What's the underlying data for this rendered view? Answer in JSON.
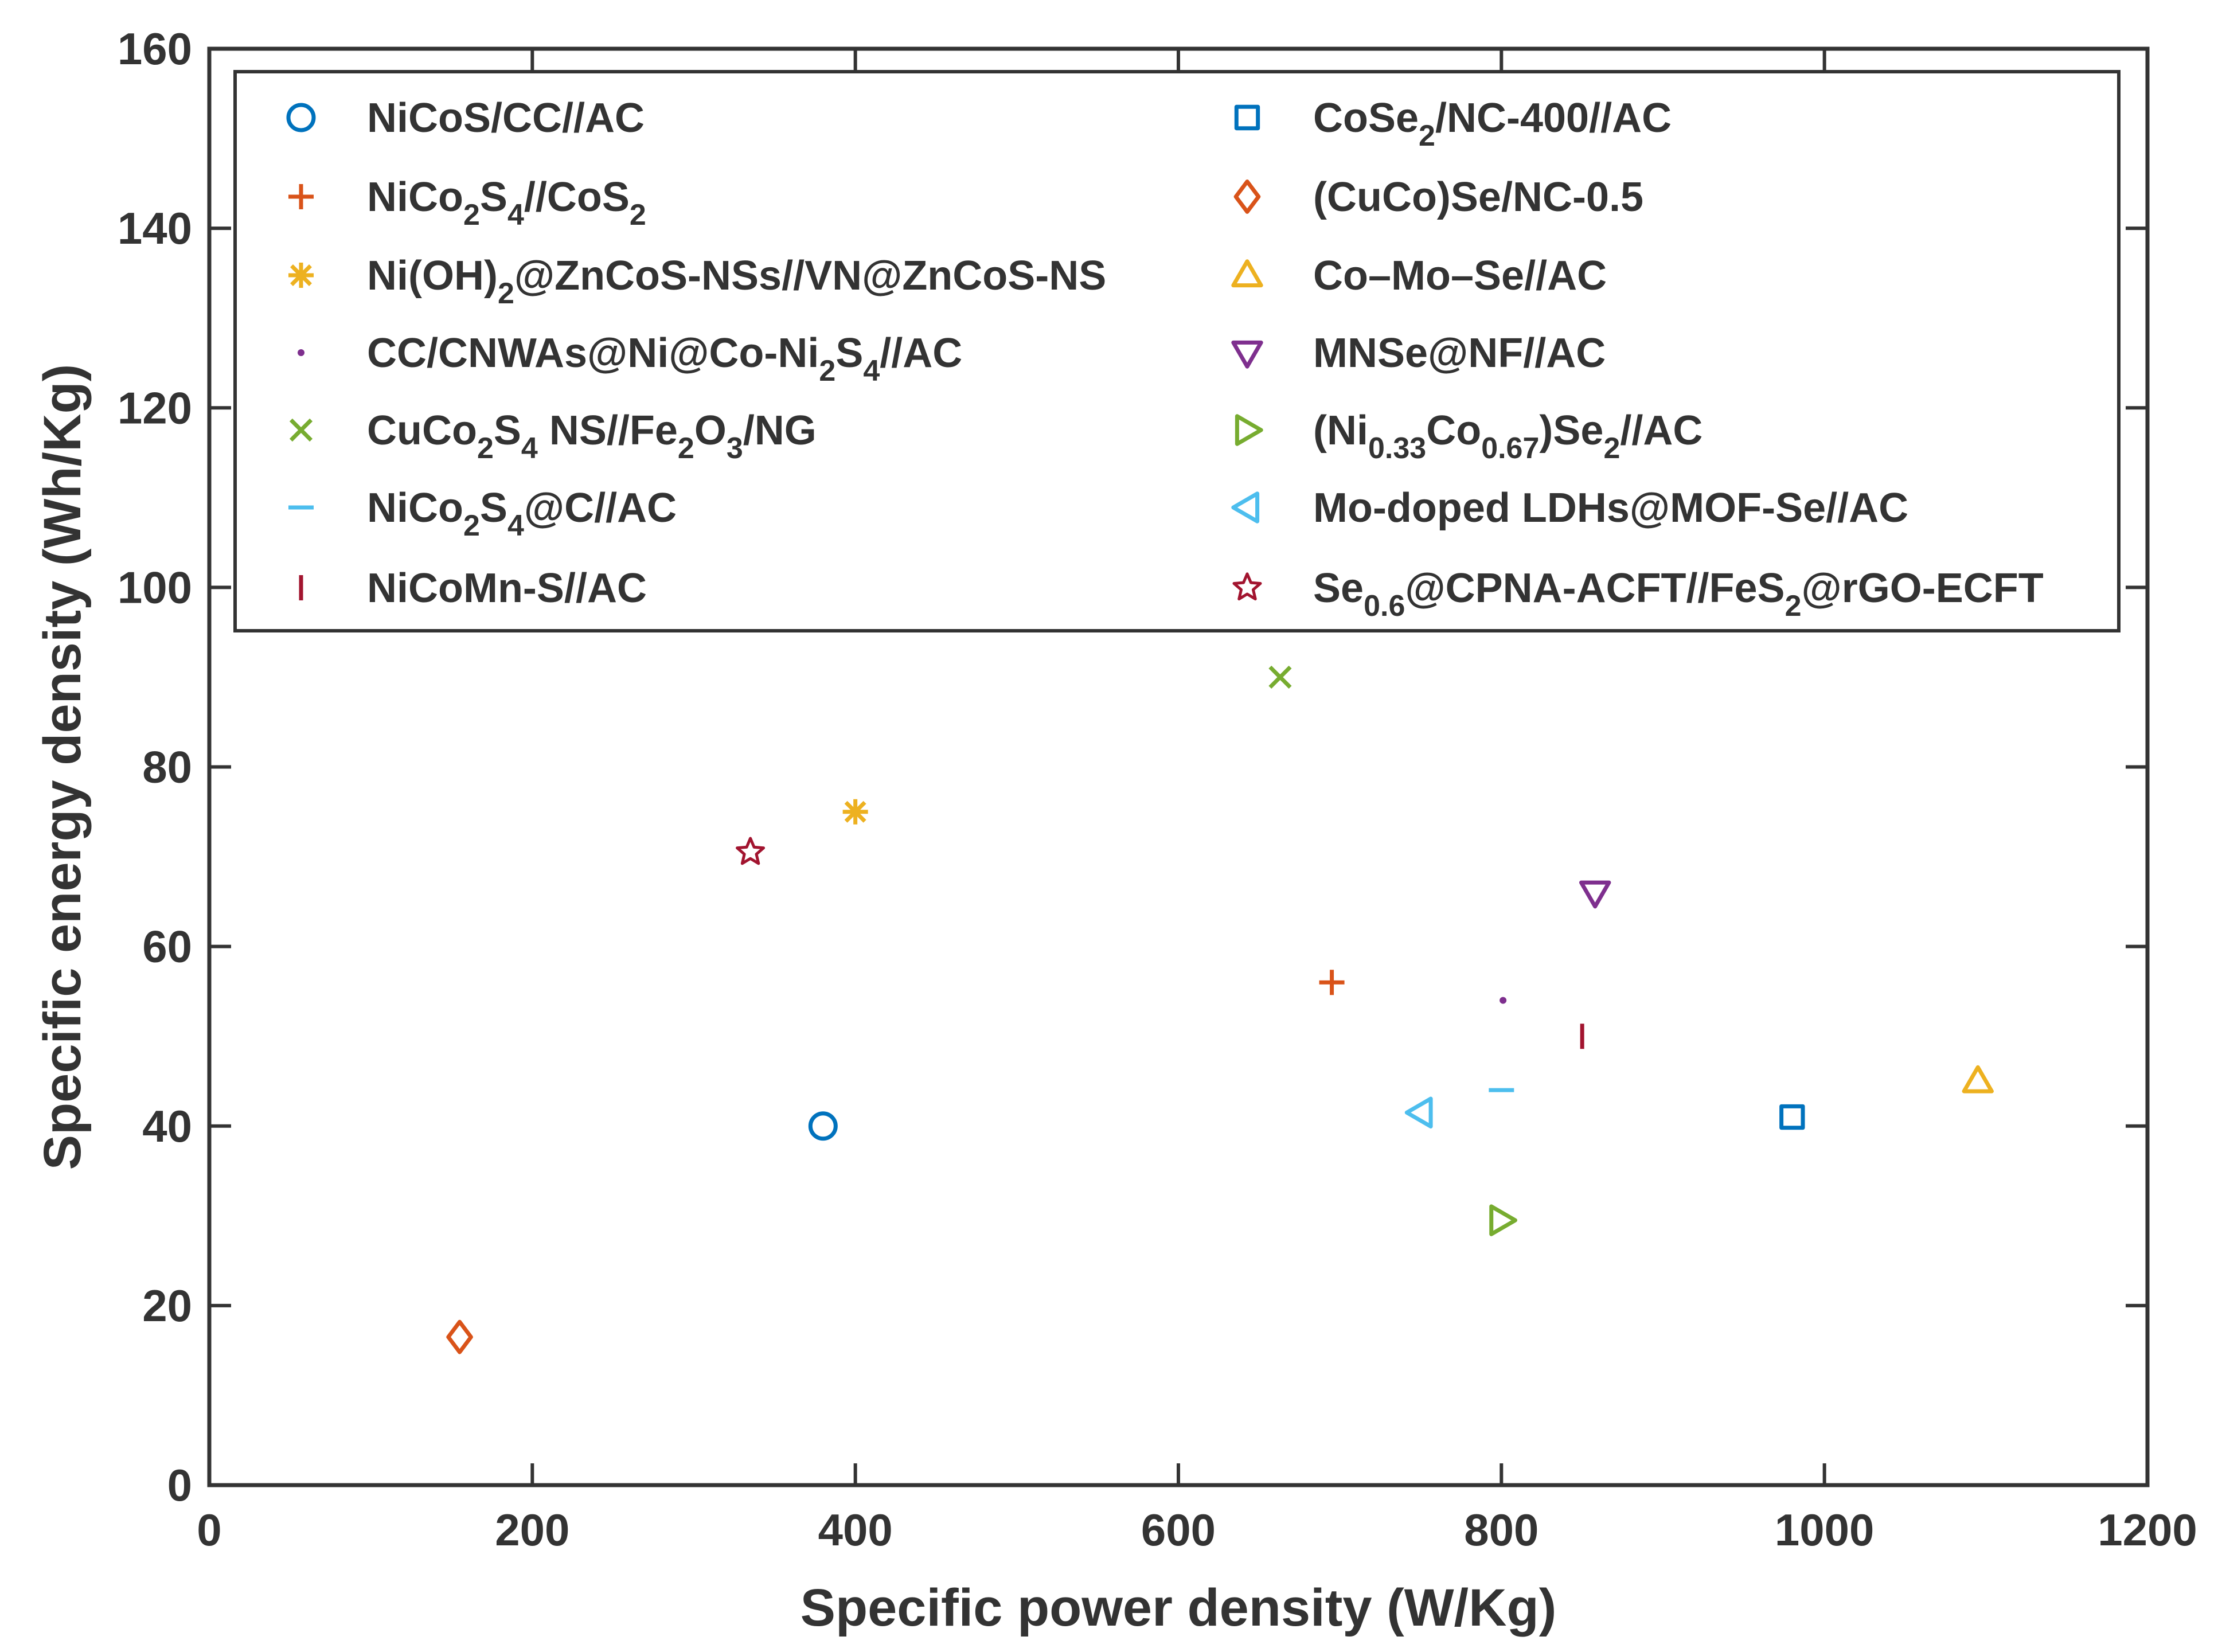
{
  "chart_data": {
    "type": "scatter",
    "title": "",
    "xlabel": "Specific power density (W/Kg)",
    "ylabel": "Specific energy density (Wh/Kg)",
    "xlim": [
      0,
      1200
    ],
    "ylim": [
      0,
      160
    ],
    "xticks": [
      0,
      200,
      400,
      600,
      800,
      1000,
      1200
    ],
    "yticks": [
      0,
      20,
      40,
      60,
      80,
      100,
      120,
      140,
      160
    ],
    "grid": false,
    "legend_position": "top",
    "series": [
      {
        "id": "s1",
        "name": "NiCoS/CC//AC",
        "label_segments": [
          [
            "NiCoS/CC//AC",
            ""
          ]
        ],
        "marker": "circle",
        "color": "#0072BD",
        "x": 380,
        "y": 40
      },
      {
        "id": "s2",
        "name": "NiCo2S4//CoS2",
        "label_segments": [
          [
            "NiCo",
            ""
          ],
          [
            "2",
            "sub"
          ],
          [
            "S",
            ""
          ],
          [
            "4",
            "sub"
          ],
          [
            "//CoS",
            ""
          ],
          [
            "2",
            "sub"
          ]
        ],
        "marker": "plus",
        "color": "#D95319",
        "x": 695,
        "y": 56
      },
      {
        "id": "s3",
        "name": "Ni(OH)2@ZnCoS-NSs//VN@ZnCoS-NS",
        "label_segments": [
          [
            "Ni(OH)",
            ""
          ],
          [
            "2",
            "sub"
          ],
          [
            "@ZnCoS-NSs//VN@ZnCoS-NS",
            ""
          ]
        ],
        "marker": "asterisk",
        "color": "#EDB120",
        "x": 400,
        "y": 75
      },
      {
        "id": "s4",
        "name": "CC/CNWAs@Ni@Co-Ni2S4//AC",
        "label_segments": [
          [
            "CC/CNWAs@Ni@Co-Ni",
            ""
          ],
          [
            "2",
            "sub"
          ],
          [
            "S",
            ""
          ],
          [
            "4",
            "sub"
          ],
          [
            "//AC",
            ""
          ]
        ],
        "marker": "point",
        "color": "#7E2F8E",
        "x": 801,
        "y": 54
      },
      {
        "id": "s5",
        "name": "CuCo2S4 NS//Fe2O3/NG",
        "label_segments": [
          [
            "CuCo",
            ""
          ],
          [
            "2",
            "sub"
          ],
          [
            "S",
            ""
          ],
          [
            "4",
            "sub"
          ],
          [
            " NS//Fe",
            ""
          ],
          [
            "2",
            "sub"
          ],
          [
            "O",
            ""
          ],
          [
            "3",
            "sub"
          ],
          [
            "/NG",
            ""
          ]
        ],
        "marker": "x",
        "color": "#77AC30",
        "x": 663,
        "y": 90
      },
      {
        "id": "s6",
        "name": "NiCo2S4@C//AC",
        "label_segments": [
          [
            "NiCo",
            ""
          ],
          [
            "2",
            "sub"
          ],
          [
            "S",
            ""
          ],
          [
            "4",
            "sub"
          ],
          [
            "@C//AC",
            ""
          ]
        ],
        "marker": "hline",
        "color": "#4DBEEE",
        "x": 800,
        "y": 44
      },
      {
        "id": "s7",
        "name": "NiCoMn-S//AC",
        "label_segments": [
          [
            "NiCoMn-S//AC",
            ""
          ]
        ],
        "marker": "vline",
        "color": "#A2142F",
        "x": 850,
        "y": 50
      },
      {
        "id": "s8",
        "name": "CoSe2/NC-400//AC",
        "label_segments": [
          [
            "CoSe",
            ""
          ],
          [
            "2",
            "sub"
          ],
          [
            "/NC-400//AC",
            ""
          ]
        ],
        "marker": "square",
        "color": "#0072BD",
        "x": 980,
        "y": 41
      },
      {
        "id": "s9",
        "name": "(CuCo)Se/NC-0.5",
        "label_segments": [
          [
            "(CuCo)Se/NC-0.5",
            ""
          ]
        ],
        "marker": "diamond",
        "color": "#D95319",
        "x": 155,
        "y": 16.5
      },
      {
        "id": "s10",
        "name": "Co–Mo–Se//AC",
        "label_segments": [
          [
            "Co–Mo–Se//AC",
            ""
          ]
        ],
        "marker": "triangle-up",
        "color": "#EDB120",
        "x": 1095,
        "y": 45
      },
      {
        "id": "s11",
        "name": "MNSe@NF//AC",
        "label_segments": [
          [
            "MNSe@NF//AC",
            ""
          ]
        ],
        "marker": "triangle-down",
        "color": "#7E2F8E",
        "x": 858,
        "y": 66
      },
      {
        "id": "s12",
        "name": "(Ni0.33Co0.67)Se2//AC",
        "label_segments": [
          [
            "(Ni",
            ""
          ],
          [
            "0.33",
            "sub"
          ],
          [
            "Co",
            ""
          ],
          [
            "0.67",
            "sub"
          ],
          [
            ")Se",
            ""
          ],
          [
            "2",
            "sub"
          ],
          [
            "//AC",
            ""
          ]
        ],
        "marker": "triangle-right",
        "color": "#77AC30",
        "x": 800,
        "y": 29.5
      },
      {
        "id": "s13",
        "name": "Mo-doped LDHs@MOF-Se//AC",
        "label_segments": [
          [
            "Mo-doped LDHs@MOF-Se//AC",
            ""
          ]
        ],
        "marker": "triangle-left",
        "color": "#4DBEEE",
        "x": 750,
        "y": 41.5
      },
      {
        "id": "s14",
        "name": "Se0.6@CPNA-ACFT//FeS2@rGO-ECFT",
        "label_segments": [
          [
            "Se",
            ""
          ],
          [
            "0.6",
            "sub"
          ],
          [
            "@CPNA-ACFT//FeS",
            ""
          ],
          [
            "2",
            "sub"
          ],
          [
            "@rGO-ECFT",
            ""
          ]
        ],
        "marker": "pentagram",
        "color": "#A2142F",
        "x": 335,
        "y": 70.5
      }
    ]
  }
}
